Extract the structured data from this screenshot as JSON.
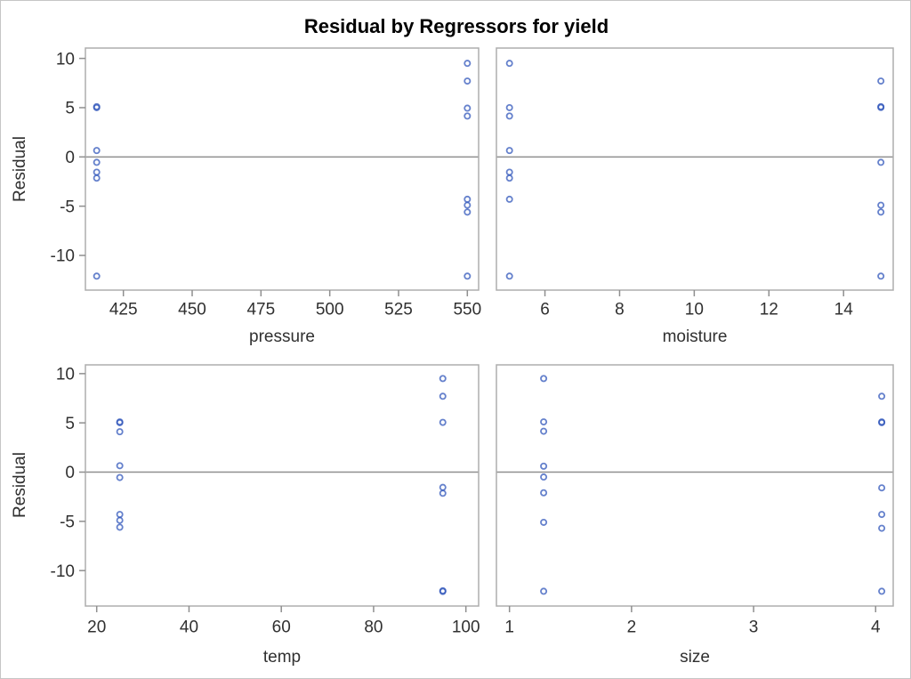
{
  "figure": {
    "title": "Residual by Regressors for yield",
    "y_axis_title": "Residual",
    "colors": {
      "marker": "#2a50b8",
      "zero_line": "#8f8f8f",
      "frame": "#adadad",
      "tick": "#8f8f8f",
      "text": "#303030",
      "background": "#ffffff",
      "outer_border": "#c6c6c6"
    }
  },
  "chart_data": [
    {
      "type": "scatter",
      "title": "",
      "xlabel": "pressure",
      "ylabel": "Residual",
      "xlim": [
        411.2,
        554.1
      ],
      "ylim": [
        -13.52,
        11.05
      ],
      "xticks": [
        425,
        450,
        475,
        500,
        525,
        550
      ],
      "yticks": [
        10,
        5,
        0,
        -5,
        -10
      ],
      "refline_y": 0,
      "grid": false,
      "legend": "none",
      "points": [
        [
          415.3,
          5.1
        ],
        [
          415.3,
          5.0
        ],
        [
          415.3,
          0.65
        ],
        [
          415.3,
          -0.55
        ],
        [
          415.3,
          -1.55
        ],
        [
          415.3,
          -2.15
        ],
        [
          415.3,
          -12.1
        ],
        [
          550,
          9.5
        ],
        [
          550,
          7.7
        ],
        [
          550,
          4.95
        ],
        [
          550,
          4.15
        ],
        [
          550,
          -4.3
        ],
        [
          550,
          -4.9
        ],
        [
          550,
          -5.6
        ],
        [
          550,
          -12.1
        ]
      ]
    },
    {
      "type": "scatter",
      "title": "",
      "xlabel": "moisture",
      "ylabel": "Residual",
      "xlim": [
        4.7,
        15.33
      ],
      "ylim": [
        -13.52,
        11.05
      ],
      "xticks": [
        6,
        8,
        10,
        12,
        14
      ],
      "yticks": [
        10,
        5,
        0,
        -5,
        -10
      ],
      "refline_y": 0,
      "grid": false,
      "legend": "none",
      "points": [
        [
          5.05,
          9.5
        ],
        [
          5.05,
          5.0
        ],
        [
          5.05,
          4.15
        ],
        [
          5.05,
          0.65
        ],
        [
          5.05,
          -1.55
        ],
        [
          5.05,
          -2.15
        ],
        [
          5.05,
          -4.3
        ],
        [
          5.05,
          -12.1
        ],
        [
          15,
          7.7
        ],
        [
          15,
          5.1
        ],
        [
          15,
          5.02
        ],
        [
          15,
          -0.55
        ],
        [
          15,
          -4.9
        ],
        [
          15,
          -5.6
        ],
        [
          15,
          -12.1
        ]
      ]
    },
    {
      "type": "scatter",
      "title": "",
      "xlabel": "temp",
      "ylabel": "Residual",
      "xlim": [
        17.55,
        102.76
      ],
      "ylim": [
        -13.6,
        10.89
      ],
      "xticks": [
        20,
        40,
        60,
        80,
        100
      ],
      "yticks": [
        10,
        5,
        0,
        -5,
        -10
      ],
      "refline_y": 0,
      "grid": false,
      "legend": "none",
      "points": [
        [
          25,
          5.1
        ],
        [
          25,
          5.02
        ],
        [
          25,
          4.1
        ],
        [
          25,
          0.65
        ],
        [
          25,
          -0.55
        ],
        [
          25,
          -4.3
        ],
        [
          25,
          -4.9
        ],
        [
          25,
          -5.6
        ],
        [
          95,
          9.5
        ],
        [
          95,
          7.7
        ],
        [
          95,
          5.05
        ],
        [
          95,
          -1.55
        ],
        [
          95,
          -2.15
        ],
        [
          95,
          -12.12
        ],
        [
          95,
          -12.05
        ]
      ]
    },
    {
      "type": "scatter",
      "title": "",
      "xlabel": "size",
      "ylabel": "Residual",
      "xlim": [
        0.893,
        4.144
      ],
      "ylim": [
        -13.6,
        10.89
      ],
      "xticks": [
        1,
        2,
        3,
        4
      ],
      "yticks": [
        10,
        5,
        0,
        -5,
        -10
      ],
      "refline_y": 0,
      "grid": false,
      "legend": "none",
      "points": [
        [
          1.28,
          9.5
        ],
        [
          1.28,
          5.1
        ],
        [
          1.28,
          4.15
        ],
        [
          1.28,
          0.6
        ],
        [
          1.28,
          -0.5
        ],
        [
          1.28,
          -2.1
        ],
        [
          1.28,
          -5.1
        ],
        [
          1.28,
          -12.1
        ],
        [
          4.05,
          7.7
        ],
        [
          4.05,
          5.1
        ],
        [
          4.05,
          5.02
        ],
        [
          4.05,
          -1.6
        ],
        [
          4.05,
          -4.3
        ],
        [
          4.05,
          -5.7
        ],
        [
          4.05,
          -12.1
        ]
      ]
    }
  ]
}
